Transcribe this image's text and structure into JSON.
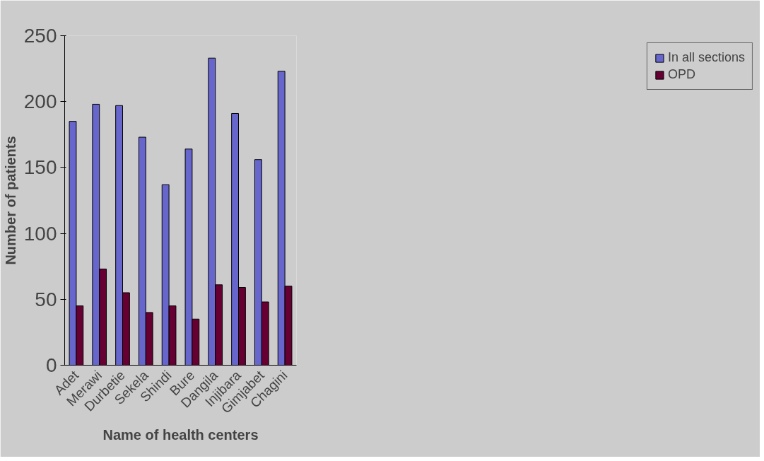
{
  "chart_data": {
    "type": "bar",
    "xlabel": "Name of health centers",
    "ylabel": "Number of patients",
    "categories": [
      "Adet",
      "Merawi",
      "Durbetie",
      "Sekela",
      "Shindi",
      "Bure",
      "Dangila",
      "Injibara",
      "Gimjabet",
      "Chagini"
    ],
    "series": [
      {
        "name": "In all sections",
        "color": "#6666cc",
        "values": [
          185,
          198,
          197,
          173,
          137,
          164,
          233,
          191,
          156,
          223
        ]
      },
      {
        "name": "OPD",
        "color": "#660033",
        "values": [
          45,
          73,
          55,
          40,
          45,
          35,
          61,
          59,
          48,
          60
        ]
      }
    ],
    "ylim": [
      0,
      250
    ],
    "yticks": [
      0,
      50,
      100,
      150,
      200,
      250
    ],
    "grid": false,
    "legend": "right"
  }
}
